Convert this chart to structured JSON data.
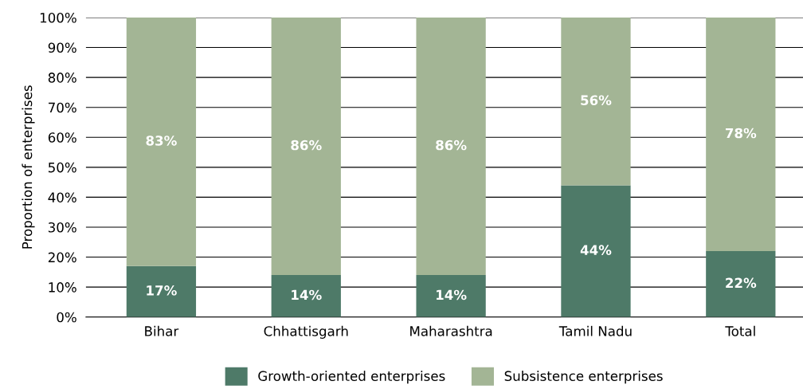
{
  "chart_data": {
    "type": "bar",
    "stacked": true,
    "ylabel": "Proportion of enterprises",
    "categories": [
      "Bihar",
      "Chhattisgarh",
      "Maharashtra",
      "Tamil Nadu",
      "Total"
    ],
    "series": [
      {
        "name": "Growth-oriented enterprises",
        "color": "#4e7a68",
        "values": [
          17,
          14,
          14,
          44,
          22
        ],
        "value_labels": [
          "17%",
          "14%",
          "14%",
          "44%",
          "22%"
        ]
      },
      {
        "name": "Subsistence enterprises",
        "color": "#a3b595",
        "values": [
          83,
          86,
          86,
          56,
          78
        ],
        "value_labels": [
          "83%",
          "86%",
          "86%",
          "56%",
          "78%"
        ]
      }
    ],
    "ylim": [
      0,
      100
    ],
    "yticks": [
      {
        "value": 0,
        "label": "0%"
      },
      {
        "value": 10,
        "label": "10%"
      },
      {
        "value": 20,
        "label": "20%"
      },
      {
        "value": 30,
        "label": "30%"
      },
      {
        "value": 40,
        "label": "40%"
      },
      {
        "value": 50,
        "label": "50%"
      },
      {
        "value": 60,
        "label": "60%"
      },
      {
        "value": 70,
        "label": "70%"
      },
      {
        "value": 80,
        "label": "80%"
      },
      {
        "value": 90,
        "label": "90%"
      },
      {
        "value": 100,
        "label": "100%"
      }
    ],
    "grid": "y",
    "legend": "bottom"
  }
}
